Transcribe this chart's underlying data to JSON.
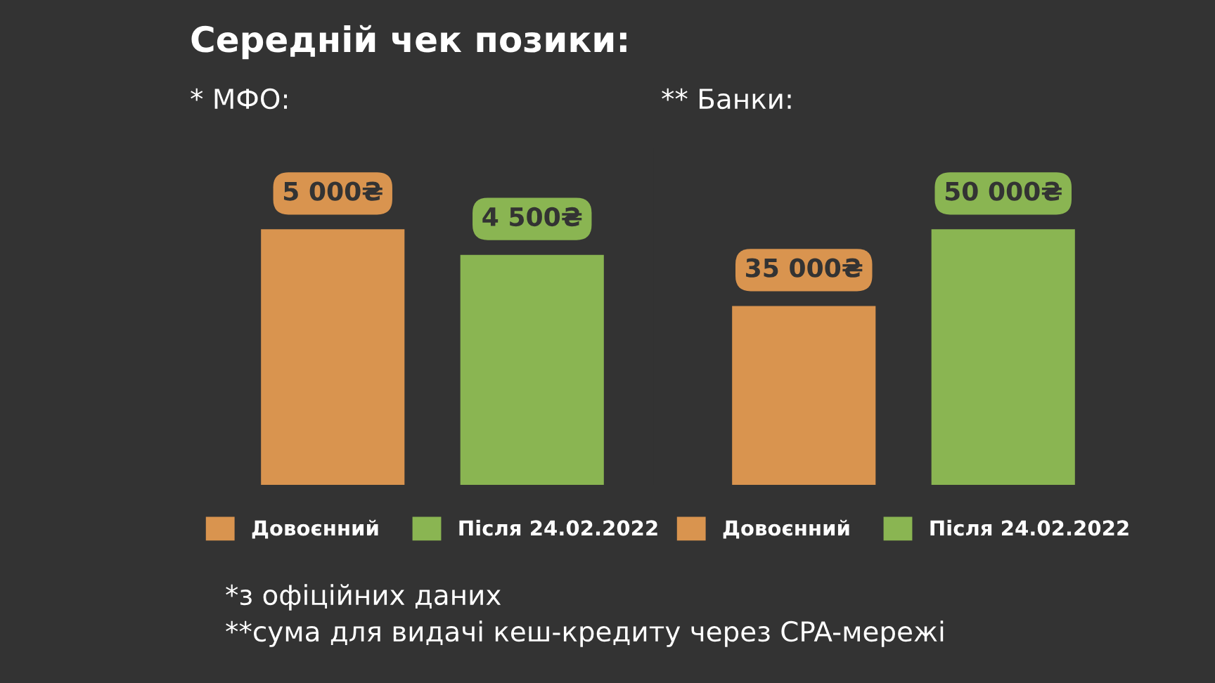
{
  "chart_data": [
    {
      "type": "bar",
      "title": "Середній чек позики:",
      "subtitle": "* МФО:",
      "categories": [
        null
      ],
      "series": [
        {
          "name": "Довоєнний",
          "color": "#d9944f",
          "values": [
            5000
          ],
          "value_labels": [
            "5 000₴"
          ]
        },
        {
          "name": "Після 24.02.2022",
          "color": "#8ab552",
          "values": [
            4500
          ],
          "value_labels": [
            "4 500₴"
          ]
        }
      ],
      "legend": "bottom",
      "annotations": [
        "*з офіційних даних",
        "**сума для видачі кеш-кредиту через CPA-мережі"
      ]
    },
    {
      "type": "bar",
      "subtitle": "** Банки:",
      "categories": [
        null
      ],
      "series": [
        {
          "name": "Довоєнний",
          "color": "#d9944f",
          "values": [
            35000
          ],
          "value_labels": [
            "35 000₴"
          ]
        },
        {
          "name": "Після 24.02.2022",
          "color": "#8ab552",
          "values": [
            50000
          ],
          "value_labels": [
            "50 000₴"
          ]
        }
      ],
      "legend": "bottom"
    }
  ]
}
